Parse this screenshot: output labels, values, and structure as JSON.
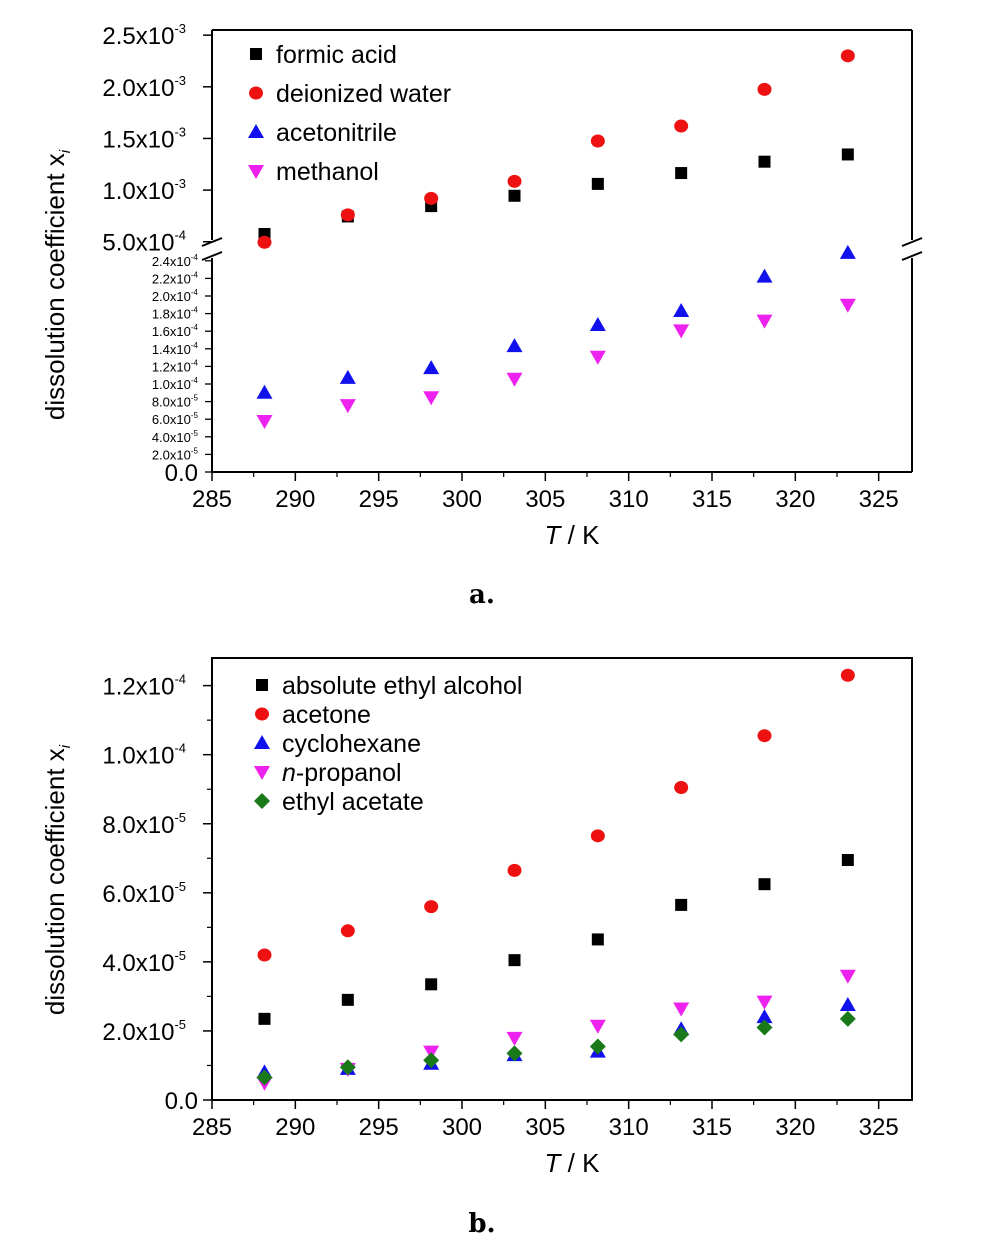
{
  "chart_data": [
    {
      "type": "scatter",
      "caption": "a.",
      "xlabel_var": "T",
      "xlabel_unit": " / K",
      "ylabel": "dissolution coefficient x",
      "ylabel_sub": "i",
      "xlim": [
        285,
        327
      ],
      "x_ticks": [
        "285",
        "290",
        "295",
        "300",
        "305",
        "310",
        "315",
        "320",
        "325"
      ],
      "axis_break": true,
      "y_ticks_upper": [
        {
          "v": 0.0005,
          "m": "5.0x10",
          "e": "-4"
        },
        {
          "v": 0.001,
          "m": "1.0x10",
          "e": "-3"
        },
        {
          "v": 0.0015,
          "m": "1.5x10",
          "e": "-3"
        },
        {
          "v": 0.002,
          "m": "2.0x10",
          "e": "-3"
        },
        {
          "v": 0.0025,
          "m": "2.5x10",
          "e": "-3"
        }
      ],
      "y_ticks_lower": [
        {
          "v": 0.0,
          "m": "0.0",
          "e": ""
        },
        {
          "v": 2e-05,
          "m": "2.0x10",
          "e": "-5"
        },
        {
          "v": 4e-05,
          "m": "4.0x10",
          "e": "-5"
        },
        {
          "v": 6e-05,
          "m": "6.0x10",
          "e": "-5"
        },
        {
          "v": 8e-05,
          "m": "8.0x10",
          "e": "-5"
        },
        {
          "v": 0.0001,
          "m": "1.0x10",
          "e": "-4"
        },
        {
          "v": 0.00012,
          "m": "1.2x10",
          "e": "-4"
        },
        {
          "v": 0.00014,
          "m": "1.4x10",
          "e": "-4"
        },
        {
          "v": 0.00016,
          "m": "1.6x10",
          "e": "-4"
        },
        {
          "v": 0.00018,
          "m": "1.8x10",
          "e": "-4"
        },
        {
          "v": 0.0002,
          "m": "2.0x10",
          "e": "-4"
        },
        {
          "v": 0.00022,
          "m": "2.2x10",
          "e": "-4"
        },
        {
          "v": 0.00024,
          "m": "2.4x10",
          "e": "-4"
        }
      ],
      "x": [
        288.15,
        293.15,
        298.15,
        303.15,
        308.15,
        313.15,
        318.15,
        323.15
      ],
      "series": [
        {
          "name": "formic acid",
          "name_italic": "",
          "marker": "square",
          "color": "#000000",
          "values": [
            0.000575,
            0.000745,
            0.000845,
            0.000945,
            0.00106,
            0.001165,
            0.001275,
            0.001345
          ]
        },
        {
          "name": "deionized water",
          "name_italic": "",
          "marker": "circle",
          "color": "#ee1111",
          "values": [
            0.000495,
            0.00076,
            0.00092,
            0.001085,
            0.001475,
            0.00162,
            0.001975,
            0.0023
          ]
        },
        {
          "name": "acetonitrile",
          "name_italic": "",
          "marker": "triangle-up",
          "color": "#1111ee",
          "values": [
            9e-05,
            0.000107,
            0.000118,
            0.000143,
            0.000167,
            0.000183,
            0.000222,
            0.000249
          ]
        },
        {
          "name": "methanol",
          "name_italic": "",
          "marker": "triangle-down",
          "color": "#ee22ee",
          "values": [
            5.8e-05,
            7.6e-05,
            8.5e-05,
            0.000106,
            0.000131,
            0.000161,
            0.000172,
            0.00019
          ]
        }
      ]
    },
    {
      "type": "scatter",
      "caption": "b.",
      "xlabel_var": "T",
      "xlabel_unit": " / K",
      "ylabel": "dissolution coefficient x",
      "ylabel_sub": "i",
      "xlim": [
        285,
        327
      ],
      "ylim": [
        0,
        0.000128
      ],
      "x_ticks": [
        "285",
        "290",
        "295",
        "300",
        "305",
        "310",
        "315",
        "320",
        "325"
      ],
      "y_ticks": [
        {
          "v": 0.0,
          "m": "0.0",
          "e": ""
        },
        {
          "v": 2e-05,
          "m": "2.0x10",
          "e": "-5"
        },
        {
          "v": 4e-05,
          "m": "4.0x10",
          "e": "-5"
        },
        {
          "v": 6e-05,
          "m": "6.0x10",
          "e": "-5"
        },
        {
          "v": 8e-05,
          "m": "8.0x10",
          "e": "-5"
        },
        {
          "v": 0.0001,
          "m": "1.0x10",
          "e": "-4"
        },
        {
          "v": 0.00012,
          "m": "1.2x10",
          "e": "-4"
        }
      ],
      "x": [
        288.15,
        293.15,
        298.15,
        303.15,
        308.15,
        313.15,
        318.15,
        323.15
      ],
      "series": [
        {
          "name": "absolute ethyl alcohol",
          "name_italic": "",
          "marker": "square",
          "color": "#000000",
          "values": [
            2.35e-05,
            2.9e-05,
            3.35e-05,
            4.05e-05,
            4.65e-05,
            5.65e-05,
            6.25e-05,
            6.95e-05
          ]
        },
        {
          "name": "acetone",
          "name_italic": "",
          "marker": "circle",
          "color": "#ee1111",
          "values": [
            4.2e-05,
            4.9e-05,
            5.6e-05,
            6.65e-05,
            7.65e-05,
            9.05e-05,
            0.0001055,
            0.000123
          ]
        },
        {
          "name": "cyclohexane",
          "name_italic": "",
          "marker": "triangle-up",
          "color": "#1111ee",
          "values": [
            8e-06,
            9e-06,
            1.05e-05,
            1.3e-05,
            1.4e-05,
            2.05e-05,
            2.4e-05,
            2.75e-05
          ]
        },
        {
          "name": "-propanol",
          "name_italic": "n",
          "marker": "triangle-down",
          "color": "#ee22ee",
          "values": [
            5e-06,
            9e-06,
            1.4e-05,
            1.8e-05,
            2.15e-05,
            2.65e-05,
            2.85e-05,
            3.6e-05
          ]
        },
        {
          "name": "ethyl acetate",
          "name_italic": "",
          "marker": "diamond",
          "color": "#1a7a1a",
          "values": [
            6.5e-06,
            9.5e-06,
            1.15e-05,
            1.35e-05,
            1.55e-05,
            1.9e-05,
            2.1e-05,
            2.35e-05
          ]
        }
      ]
    }
  ]
}
